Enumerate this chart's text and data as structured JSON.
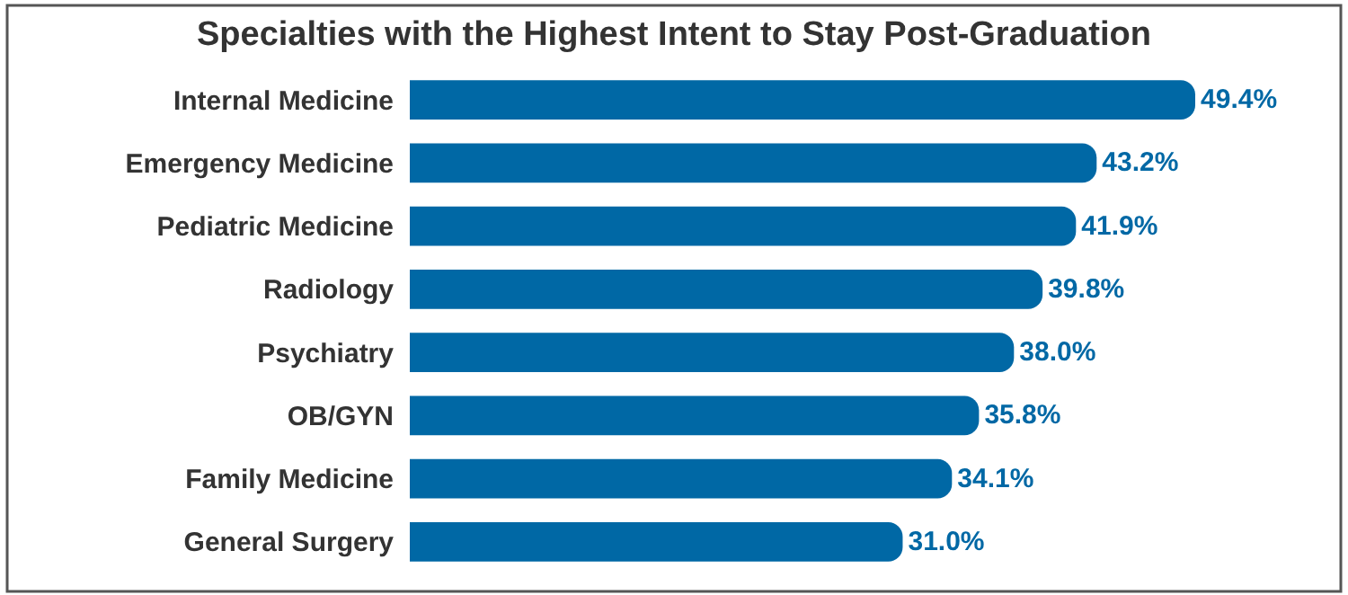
{
  "chart_data": {
    "type": "bar",
    "orientation": "horizontal",
    "title": "Specialties with the Highest Intent to Stay Post-Graduation",
    "categories": [
      "Internal Medicine",
      "Emergency Medicine",
      "Pediatric Medicine",
      "Radiology",
      "Psychiatry",
      "OB/GYN",
      "Family Medicine",
      "General Surgery"
    ],
    "values": [
      49.4,
      43.2,
      41.9,
      39.8,
      38.0,
      35.8,
      34.1,
      31.0
    ],
    "value_labels": [
      "49.4%",
      "43.2%",
      "41.9%",
      "39.8%",
      "38.0%",
      "35.8%",
      "34.1%",
      "31.0%"
    ],
    "color": "#0068a5",
    "tick_labels": "y",
    "legend": false
  }
}
